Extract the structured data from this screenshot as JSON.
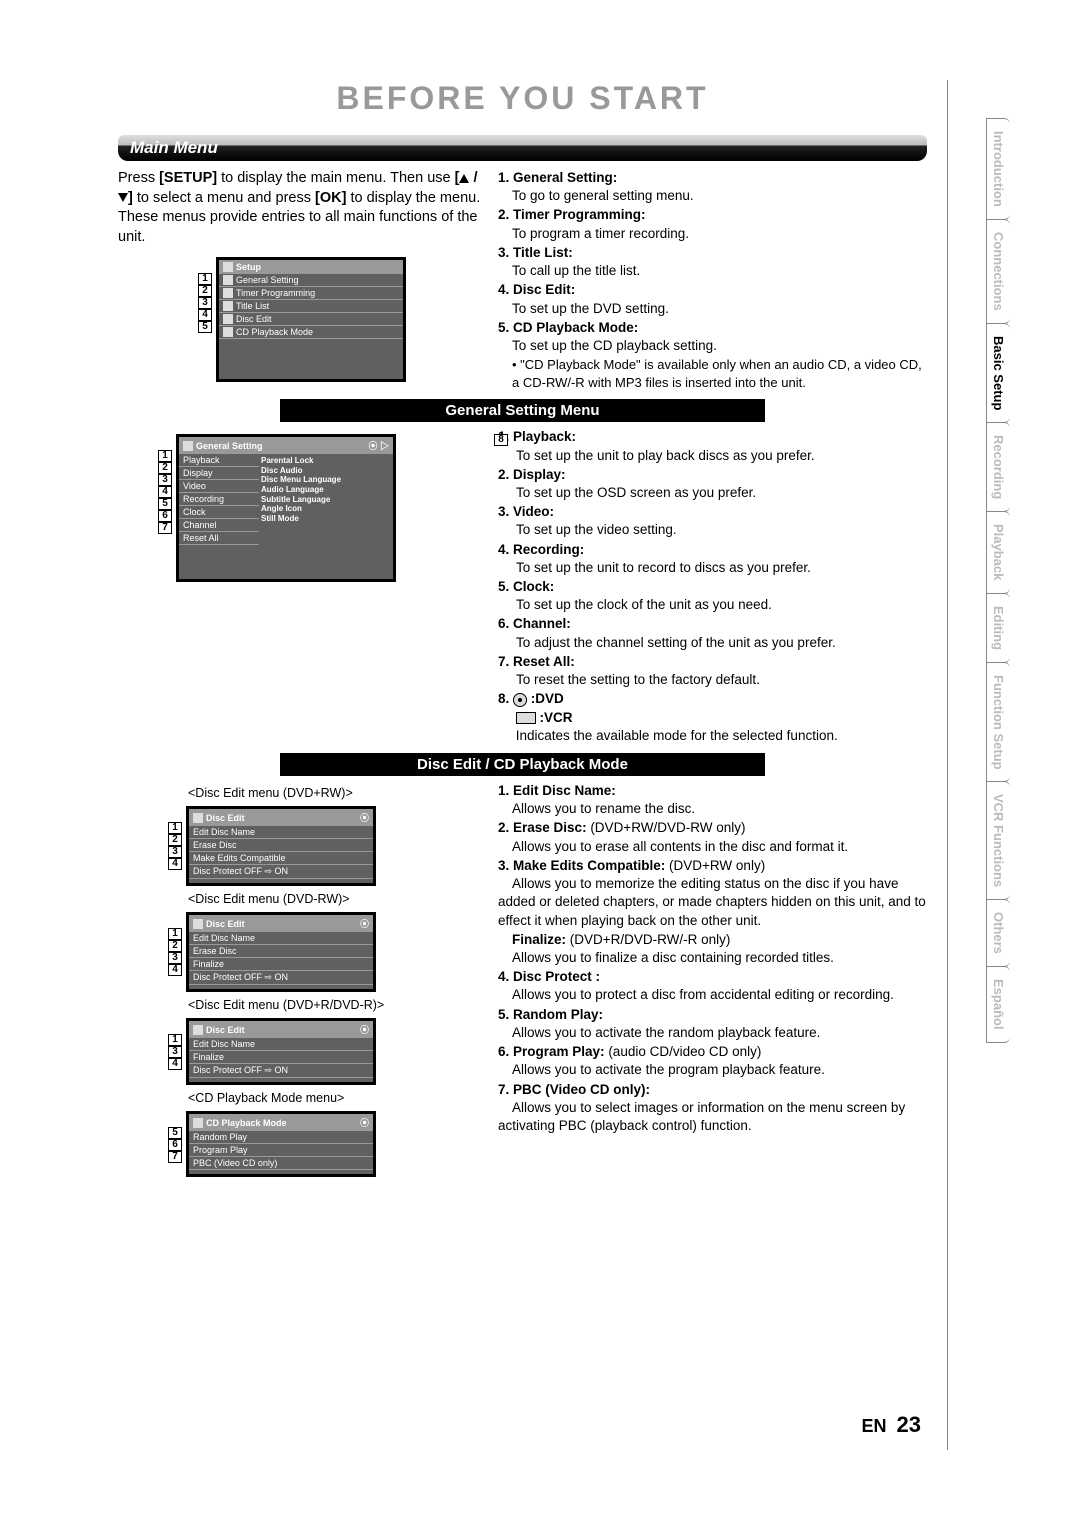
{
  "page_title": "BEFORE YOU START",
  "page_lang": "EN",
  "page_number": "23",
  "main_menu": {
    "heading": "Main Menu",
    "intro": "Press [SETUP] to display the main menu. Then use [▲ / ▼] to select a menu and press [OK] to display the menu. These menus provide entries to all main functions of the unit.",
    "osd_title": "Setup",
    "osd_items": [
      "General Setting",
      "Timer Programming",
      "Title List",
      "Disc Edit",
      "CD Playback Mode"
    ],
    "list": [
      {
        "n": "1.",
        "t": "General Setting:",
        "d": "To go to general setting menu."
      },
      {
        "n": "2.",
        "t": "Timer Programming:",
        "d": "To program a timer recording."
      },
      {
        "n": "3.",
        "t": "Title List:",
        "d": "To call up the title list."
      },
      {
        "n": "4.",
        "t": "Disc Edit:",
        "d": "To set up the DVD setting."
      },
      {
        "n": "5.",
        "t": "CD Playback Mode:",
        "d": "To set up the CD playback setting."
      }
    ],
    "note": "• \"CD Playback Mode\" is available only when an audio CD, a video CD, a CD-RW/-R with MP3 files is inserted into the unit."
  },
  "general_setting": {
    "heading": "General Setting Menu",
    "osd_title": "General Setting",
    "left_items": [
      "Playback",
      "Display",
      "Video",
      "Recording",
      "Clock",
      "Channel",
      "Reset All"
    ],
    "right_items": [
      "Parental Lock",
      "Disc Audio",
      "Disc Menu Language",
      "Audio Language",
      "Subtitle Language",
      "Angle Icon",
      "Still Mode"
    ],
    "list": [
      {
        "n": "1.",
        "t": "Playback:",
        "d": "To set up the unit to play back discs as you prefer."
      },
      {
        "n": "2.",
        "t": "Display:",
        "d": "To set up the OSD screen as you prefer."
      },
      {
        "n": "3.",
        "t": "Video:",
        "d": "To set up the video setting."
      },
      {
        "n": "4.",
        "t": "Recording:",
        "d": "To set up the unit to record to discs as you prefer."
      },
      {
        "n": "5.",
        "t": "Clock:",
        "d": "To set up the clock of the unit as you need."
      },
      {
        "n": "6.",
        "t": "Channel:",
        "d": "To adjust the channel setting of the unit as you prefer."
      },
      {
        "n": "7.",
        "t": "Reset All:",
        "d": "To reset the setting to the factory default."
      }
    ],
    "item8_n": "8.",
    "item8_dvd": ":DVD",
    "item8_vcr": ":VCR",
    "item8_d": "Indicates the available mode for the selected function."
  },
  "disc_edit": {
    "heading": "Disc Edit / CD Playback Mode",
    "menus": [
      {
        "label": "<Disc Edit menu (DVD+RW)>",
        "title": "Disc Edit",
        "items": [
          "Edit Disc Name",
          "Erase Disc",
          "Make Edits Compatible",
          "Disc Protect OFF ⇨ ON"
        ],
        "nums": [
          "1",
          "2",
          "3",
          "4"
        ]
      },
      {
        "label": "<Disc Edit menu (DVD-RW)>",
        "title": "Disc Edit",
        "items": [
          "Edit Disc Name",
          "Erase Disc",
          "Finalize",
          "Disc Protect OFF ⇨ ON"
        ],
        "nums": [
          "1",
          "2",
          "3",
          "4"
        ]
      },
      {
        "label": "<Disc Edit menu (DVD+R/DVD-R)>",
        "title": "Disc Edit",
        "items": [
          "Edit Disc Name",
          "Finalize",
          "Disc Protect OFF ⇨ ON"
        ],
        "nums": [
          "1",
          "3",
          "4"
        ]
      },
      {
        "label": "<CD Playback Mode menu>",
        "title": "CD Playback Mode",
        "items": [
          "Random Play",
          "Program Play",
          "PBC (Video CD only)"
        ],
        "nums": [
          "5",
          "6",
          "7"
        ]
      }
    ],
    "list": [
      {
        "n": "1.",
        "t": "Edit Disc Name:",
        "d": "Allows you to rename the disc."
      },
      {
        "n": "2.",
        "t": "Erase Disc:",
        "suf": " (DVD+RW/DVD-RW only)",
        "d": "Allows you to erase all contents in the disc and format it."
      },
      {
        "n": "3.",
        "t": "Make Edits Compatible:",
        "suf": " (DVD+RW only)",
        "d": "Allows you to memorize the editing status on the disc if you have added or deleted chapters, or made chapters hidden on this unit, and to effect it when playing back on the other unit."
      },
      {
        "n": "",
        "t": "Finalize:",
        "suf": " (DVD+R/DVD-RW/-R only)",
        "d": "Allows you to finalize a disc containing recorded titles."
      },
      {
        "n": "4.",
        "t": "Disc Protect :",
        "d": "Allows you to protect a disc from accidental editing or recording."
      },
      {
        "n": "5.",
        "t": "Random Play:",
        "d": "Allows you to activate the random playback feature."
      },
      {
        "n": "6.",
        "t": "Program Play:",
        "suf": " (audio CD/video CD only)",
        "d": "Allows you to activate the program playback feature."
      },
      {
        "n": "7.",
        "t": "PBC (Video CD only):",
        "d": "Allows you to select images or information on the menu screen by activating PBC (playback control) function."
      }
    ]
  },
  "tabs": [
    "Introduction",
    "Connections",
    "Basic Setup",
    "Recording",
    "Playback",
    "Editing",
    "Function Setup",
    "VCR Functions",
    "Others",
    "Español"
  ],
  "active_tab": "Basic Setup",
  "colors": {
    "title_gray": "#999999",
    "tab_gray": "#bbbbbb",
    "osd_bg": "#606060"
  }
}
